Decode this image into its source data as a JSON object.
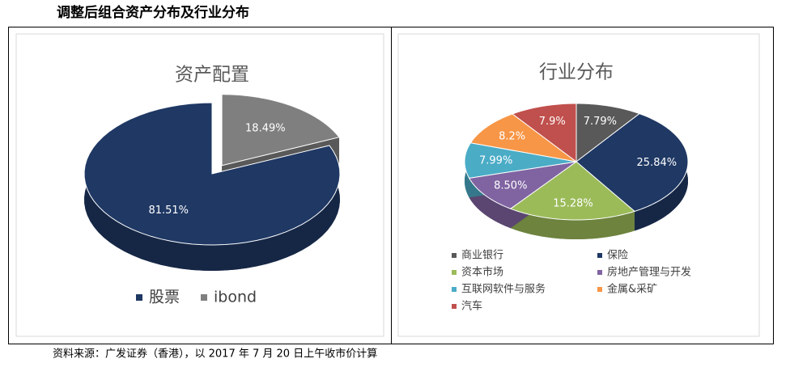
{
  "title": "调整后组合资产分布及行业分布",
  "source": "资料来源：广发证券（香港），以 2017 年 7 月 20 日上午收市价计算",
  "chart_data": [
    {
      "type": "pie",
      "title": "资产配置",
      "categories": [
        "股票",
        "ibond"
      ],
      "values": [
        81.51,
        18.49
      ],
      "value_labels": [
        "81.51%",
        "18.49%"
      ],
      "colors": [
        "#1f3864",
        "#7f7f7f"
      ],
      "exploded": [
        false,
        true
      ],
      "legend": "bottom"
    },
    {
      "type": "pie",
      "title": "行业分布",
      "categories": [
        "商业银行",
        "保险",
        "资本市场",
        "房地产管理与开发",
        "互联网软件与服务",
        "金属&采矿",
        "汽车"
      ],
      "values": [
        7.79,
        25.84,
        15.28,
        8.5,
        7.99,
        8.2,
        7.9
      ],
      "value_labels": [
        "7.79%",
        "25.84%",
        "15.28%",
        "8.50%",
        "7.99%",
        "8.2%",
        "7.9%"
      ],
      "colors": [
        "#595959",
        "#1f3864",
        "#9bbb59",
        "#8064a2",
        "#4bacc6",
        "#f79646",
        "#c0504d"
      ],
      "exploded": [
        false,
        false,
        false,
        false,
        false,
        false,
        false
      ],
      "legend": "bottom"
    }
  ]
}
